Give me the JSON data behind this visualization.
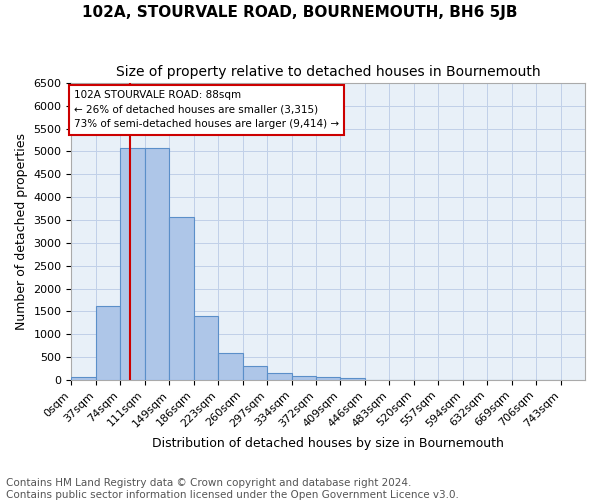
{
  "title": "102A, STOURVALE ROAD, BOURNEMOUTH, BH6 5JB",
  "subtitle": "Size of property relative to detached houses in Bournemouth",
  "xlabel": "Distribution of detached houses by size in Bournemouth",
  "ylabel": "Number of detached properties",
  "footer_line1": "Contains HM Land Registry data © Crown copyright and database right 2024.",
  "footer_line2": "Contains public sector information licensed under the Open Government Licence v3.0.",
  "annotation_line1": "102A STOURVALE ROAD: 88sqm",
  "annotation_line2": "← 26% of detached houses are smaller (3,315)",
  "annotation_line3": "73% of semi-detached houses are larger (9,414) →",
  "bar_values": [
    75,
    1625,
    5075,
    5075,
    3575,
    1400,
    600,
    300,
    150,
    90,
    60,
    50,
    0,
    0,
    0,
    0,
    0,
    0,
    0,
    0
  ],
  "tick_labels": [
    "0sqm",
    "37sqm",
    "74sqm",
    "111sqm",
    "149sqm",
    "186sqm",
    "223sqm",
    "260sqm",
    "297sqm",
    "334sqm",
    "372sqm",
    "409sqm",
    "446sqm",
    "483sqm",
    "520sqm",
    "557sqm",
    "594sqm",
    "632sqm",
    "669sqm",
    "706sqm",
    "743sqm"
  ],
  "bar_color": "#aec6e8",
  "bar_edge_color": "#5b8fc9",
  "vline_x": 88,
  "vline_color": "#cc0000",
  "annotation_box_color": "#cc0000",
  "ylim": [
    0,
    6500
  ],
  "yticks": [
    0,
    500,
    1000,
    1500,
    2000,
    2500,
    3000,
    3500,
    4000,
    4500,
    5000,
    5500,
    6000,
    6500
  ],
  "background_color": "#ffffff",
  "plot_bg_color": "#e8f0f8",
  "grid_color": "#c0d0e8",
  "title_fontsize": 11,
  "subtitle_fontsize": 10,
  "xlabel_fontsize": 9,
  "ylabel_fontsize": 9,
  "tick_fontsize": 8,
  "annotation_fontsize": 7.5,
  "footer_fontsize": 7.5,
  "bin_width": 37
}
